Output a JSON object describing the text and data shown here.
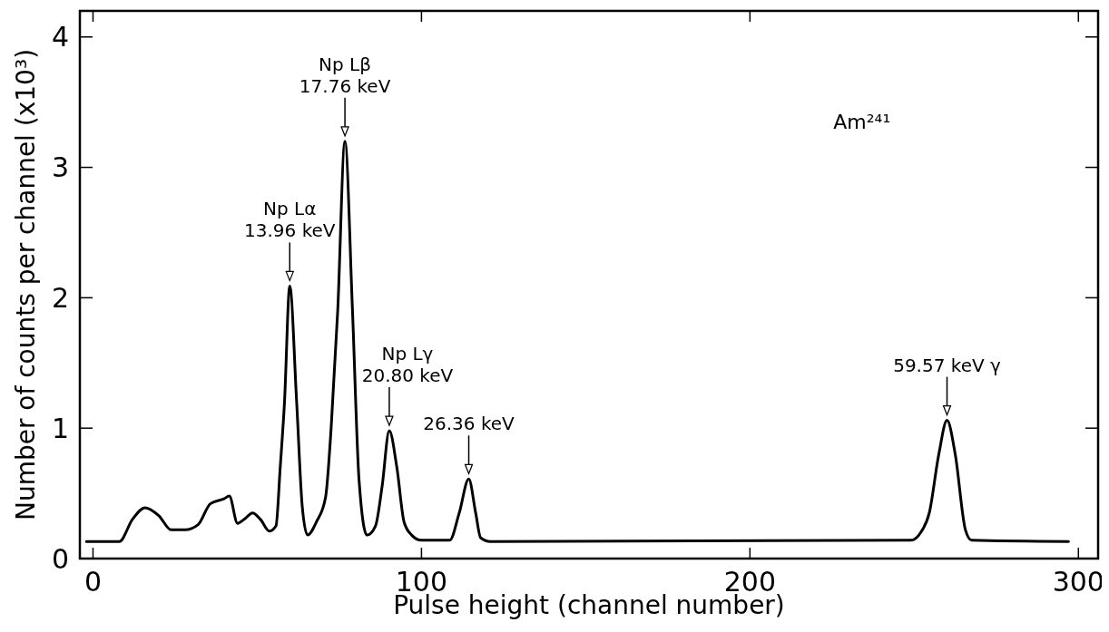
{
  "chart_data": {
    "type": "line",
    "xlabel": "Pulse height  (channel number)",
    "ylabel": "Number of counts per channel (x10³)",
    "xlim": [
      -4,
      306
    ],
    "ylim": [
      0,
      4.2
    ],
    "xticks": [
      0,
      100,
      200,
      300
    ],
    "yticks": [
      0,
      1,
      2,
      3,
      4
    ],
    "line_style": "solid",
    "series": [
      {
        "color": "#000000",
        "x": [
          -2,
          8,
          12,
          15.8,
          20,
          23.8,
          28,
          32,
          35.7,
          40,
          41.5,
          44,
          46,
          48.6,
          51,
          53.7,
          55.7,
          57,
          58.3,
          59.9,
          62,
          63.7,
          65.3,
          68,
          70.8,
          72.5,
          74.5,
          76.7,
          79,
          81,
          83.4,
          86,
          88,
          90.2,
          92.5,
          94.7,
          97,
          100,
          108.6,
          111.5,
          114.4,
          116.5,
          118,
          121,
          249,
          252,
          254.6,
          257.5,
          260,
          262.5,
          265.6,
          267.5,
          297
        ],
        "values": [
          0.13,
          0.13,
          0.3,
          0.39,
          0.33,
          0.22,
          0.22,
          0.26,
          0.42,
          0.46,
          0.48,
          0.27,
          0.3,
          0.35,
          0.3,
          0.21,
          0.25,
          0.7,
          1.2,
          2.09,
          1.2,
          0.4,
          0.18,
          0.28,
          0.47,
          1.0,
          1.9,
          3.2,
          1.9,
          0.6,
          0.18,
          0.25,
          0.55,
          0.98,
          0.7,
          0.28,
          0.18,
          0.14,
          0.14,
          0.35,
          0.61,
          0.35,
          0.16,
          0.13,
          0.14,
          0.2,
          0.35,
          0.8,
          1.06,
          0.8,
          0.22,
          0.14,
          0.13
        ]
      }
    ],
    "annotations": [
      {
        "text": "Np  Lα\n13.96 keV",
        "x": 59.9,
        "y": 2.09
      },
      {
        "text": "Np  Lβ\n17.76 keV",
        "x": 76.7,
        "y": 3.2
      },
      {
        "text": "Np Lγ\n20.80 keV",
        "x": 90.2,
        "y": 0.98
      },
      {
        "text": "26.36 keV",
        "x": 114.4,
        "y": 0.61
      },
      {
        "text": "59.57 keV  γ",
        "x": 260,
        "y": 1.06
      },
      "Am²⁴¹"
    ]
  }
}
